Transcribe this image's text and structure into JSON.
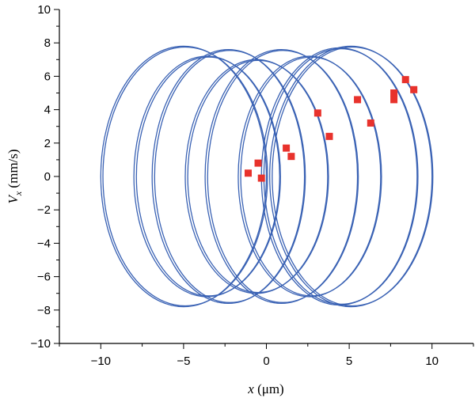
{
  "chart_data": {
    "type": "scatter",
    "title": "",
    "xlabel_var": "x",
    "xlabel_unit": " (μm)",
    "ylabel_var": "V",
    "ylabel_sub": "x",
    "ylabel_unit": " (mm/s)",
    "xlim": [
      -12.5,
      12.5
    ],
    "ylim": [
      -10,
      10
    ],
    "x_ticks": [
      -10,
      -5,
      0,
      5,
      10
    ],
    "x_tick_labels": [
      "−10",
      "−5",
      "0",
      "5",
      "10"
    ],
    "y_ticks": [
      -10,
      -8,
      -6,
      -4,
      -2,
      0,
      2,
      4,
      6,
      8,
      10
    ],
    "y_tick_labels": [
      "−10",
      "−8",
      "−6",
      "−4",
      "−2",
      "0",
      "2",
      "4",
      "6",
      "8",
      "10"
    ],
    "grid": false,
    "legend": "none",
    "colors": {
      "trajectory": "#3a62b4",
      "points": "#e8322c"
    },
    "trajectory_ellipses": [
      {
        "cx": -5.0,
        "a": 5.0,
        "b": 7.8
      },
      {
        "cx": -4.9,
        "a": 4.97,
        "b": 7.75
      },
      {
        "cx": -3.6,
        "a": 4.4,
        "b": 7.2
      },
      {
        "cx": -3.5,
        "a": 4.35,
        "b": 7.15
      },
      {
        "cx": -2.3,
        "a": 4.6,
        "b": 7.6
      },
      {
        "cx": -2.2,
        "a": 4.55,
        "b": 7.55
      },
      {
        "cx": -0.6,
        "a": 4.3,
        "b": 7.0
      },
      {
        "cx": -0.5,
        "a": 4.25,
        "b": 6.95
      },
      {
        "cx": 0.9,
        "a": 4.6,
        "b": 7.6
      },
      {
        "cx": 1.0,
        "a": 4.55,
        "b": 7.55
      },
      {
        "cx": 2.6,
        "a": 4.3,
        "b": 7.2
      },
      {
        "cx": 2.7,
        "a": 4.25,
        "b": 7.15
      },
      {
        "cx": 4.4,
        "a": 4.7,
        "b": 7.7
      },
      {
        "cx": 4.5,
        "a": 4.65,
        "b": 7.65
      },
      {
        "cx": 5.1,
        "a": 4.9,
        "b": 7.8
      },
      {
        "cx": 5.2,
        "a": 4.85,
        "b": 7.75
      }
    ],
    "points": [
      {
        "x": -1.1,
        "y": 0.2
      },
      {
        "x": -0.5,
        "y": 0.8
      },
      {
        "x": -0.3,
        "y": -0.1
      },
      {
        "x": 1.2,
        "y": 1.7
      },
      {
        "x": 1.5,
        "y": 1.2
      },
      {
        "x": 3.1,
        "y": 3.8
      },
      {
        "x": 3.8,
        "y": 2.4
      },
      {
        "x": 5.5,
        "y": 4.6
      },
      {
        "x": 6.3,
        "y": 3.2
      },
      {
        "x": 7.7,
        "y": 5.0
      },
      {
        "x": 7.7,
        "y": 4.6
      },
      {
        "x": 8.4,
        "y": 5.8
      },
      {
        "x": 8.9,
        "y": 5.2
      }
    ]
  }
}
